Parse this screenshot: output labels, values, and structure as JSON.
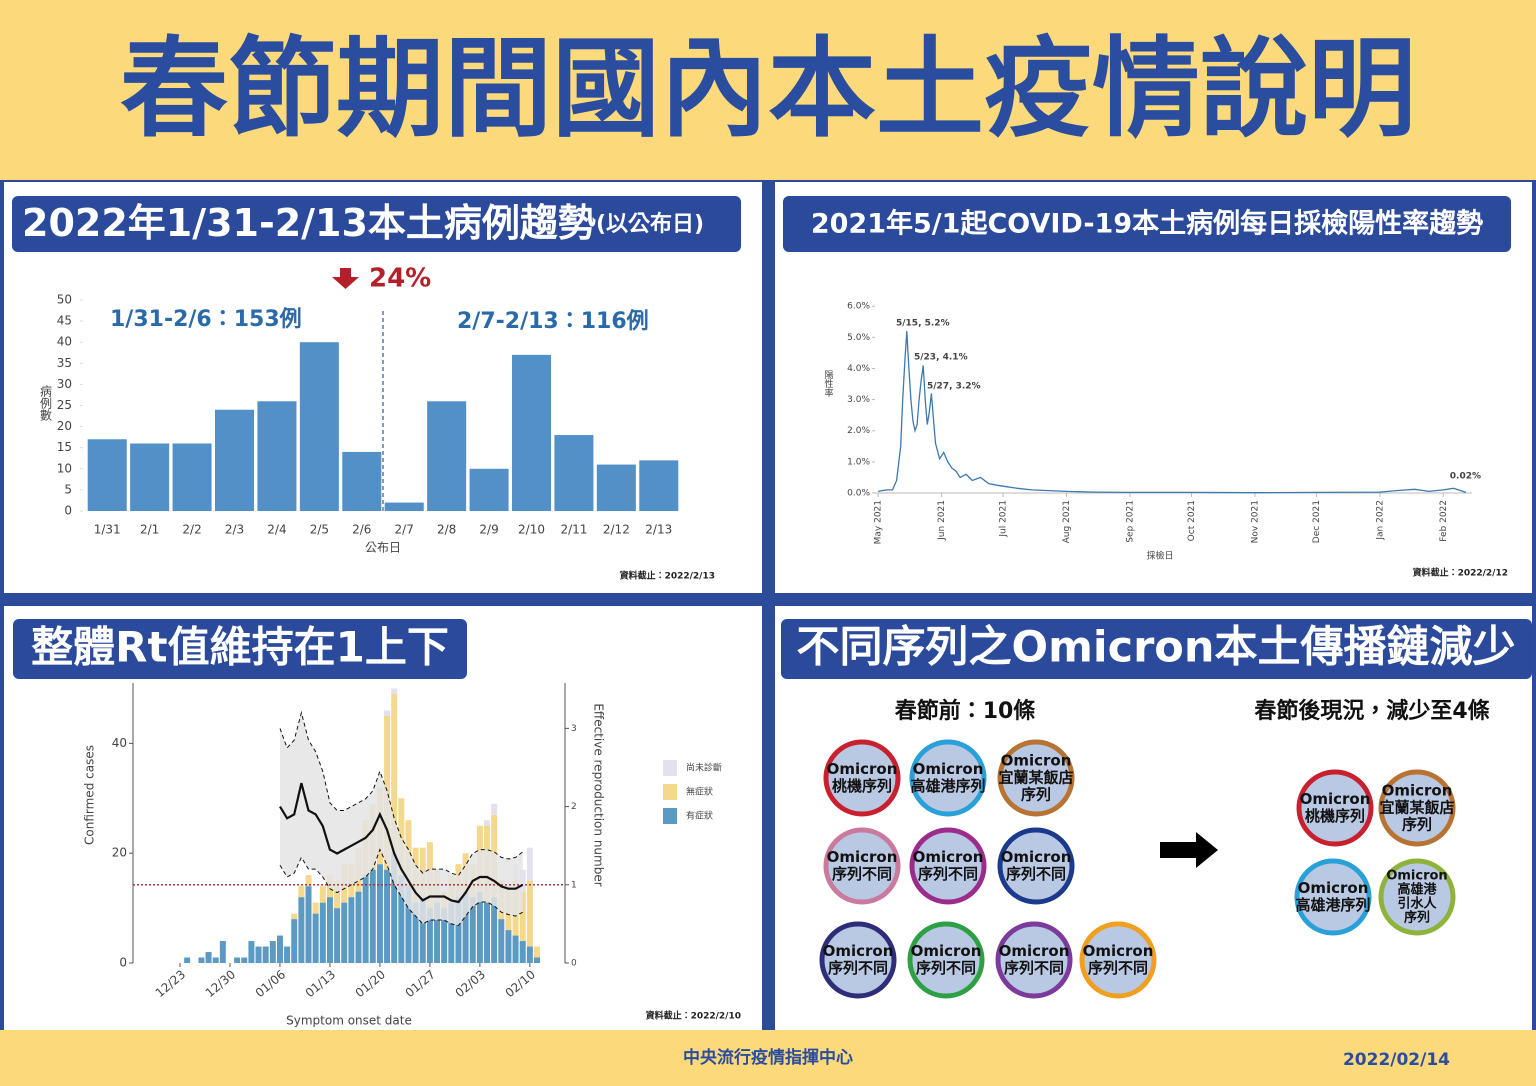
{
  "header": {
    "title": "春節期間國內本土疫情說明"
  },
  "footer": {
    "agency": "中央流行疫情指揮中心",
    "date": "2022/02/14"
  },
  "chart_data": [
    {
      "type": "bar",
      "title": "2022年1/31-2/13本土病例趨勢",
      "subtitle": "(以公布日)",
      "categories": [
        "1/31",
        "2/1",
        "2/2",
        "2/3",
        "2/4",
        "2/5",
        "2/6",
        "2/7",
        "2/8",
        "2/9",
        "2/10",
        "2/11",
        "2/12",
        "2/13"
      ],
      "values": [
        17,
        16,
        16,
        24,
        26,
        40,
        14,
        2,
        26,
        10,
        37,
        18,
        11,
        12
      ],
      "color": "#5490c8",
      "ylim": [
        0,
        50
      ],
      "yticks": [
        0,
        5,
        10,
        15,
        20,
        25,
        30,
        35,
        40,
        45,
        50
      ],
      "x_label": "公布日",
      "y_label": "病例數",
      "annotations": [
        "24%",
        "1/31-2/6：153例",
        "2/7-2/13：116例"
      ],
      "note": "資料截止：2022/2/13"
    },
    {
      "type": "line",
      "title": "2021年5/1起COVID-19本土病例每日採檢陽性率趨勢",
      "x": [
        "2021-05-01",
        "2021-05-05",
        "2021-05-08",
        "2021-05-10",
        "2021-05-12",
        "2021-05-13",
        "2021-05-14",
        "2021-05-15",
        "2021-05-16",
        "2021-05-17",
        "2021-05-18",
        "2021-05-19",
        "2021-05-20",
        "2021-05-21",
        "2021-05-22",
        "2021-05-23",
        "2021-05-24",
        "2021-05-25",
        "2021-05-26",
        "2021-05-27",
        "2021-05-28",
        "2021-05-29",
        "2021-05-31",
        "2021-06-02",
        "2021-06-04",
        "2021-06-06",
        "2021-06-08",
        "2021-06-10",
        "2021-06-13",
        "2021-06-16",
        "2021-06-20",
        "2021-06-24",
        "2021-06-28",
        "2021-07-03",
        "2021-07-08",
        "2021-07-15",
        "2021-07-22",
        "2021-08-01",
        "2021-08-15",
        "2021-09-01",
        "2021-10-01",
        "2021-11-01",
        "2021-12-01",
        "2022-01-01",
        "2022-01-10",
        "2022-01-18",
        "2022-01-25",
        "2022-02-01",
        "2022-02-06",
        "2022-02-12"
      ],
      "values": [
        0.05,
        0.1,
        0.1,
        0.4,
        1.5,
        3.0,
        4.2,
        5.2,
        4.0,
        3.0,
        2.3,
        2.0,
        2.2,
        3.0,
        3.6,
        4.1,
        3.0,
        2.2,
        2.6,
        3.2,
        2.4,
        1.6,
        1.1,
        1.3,
        1.0,
        0.8,
        0.7,
        0.5,
        0.6,
        0.4,
        0.5,
        0.3,
        0.25,
        0.2,
        0.15,
        0.1,
        0.08,
        0.05,
        0.03,
        0.02,
        0.02,
        0.01,
        0.02,
        0.03,
        0.08,
        0.12,
        0.05,
        0.1,
        0.15,
        0.02
      ],
      "color": "#3d78b0",
      "xlim": [
        "2021-04-28",
        "2022-02-15"
      ],
      "xticks": [
        {
          "value": "2021-05-01",
          "label": "May 2021"
        },
        {
          "value": "2021-06-01",
          "label": "Jun 2021"
        },
        {
          "value": "2021-07-01",
          "label": "Jul 2021"
        },
        {
          "value": "2021-08-01",
          "label": "Aug 2021"
        },
        {
          "value": "2021-09-01",
          "label": "Sep 2021"
        },
        {
          "value": "2021-10-01",
          "label": "Oct 2021"
        },
        {
          "value": "2021-11-01",
          "label": "Nov 2021"
        },
        {
          "value": "2021-12-01",
          "label": "Dec 2021"
        },
        {
          "value": "2022-01-01",
          "label": "Jan 2022"
        },
        {
          "value": "2022-02-01",
          "label": "Feb 2022"
        }
      ],
      "ylim": [
        0,
        6.2
      ],
      "yticks": [
        {
          "value": 0,
          "label": "0.0%"
        },
        {
          "value": 1,
          "label": "1.0%"
        },
        {
          "value": 2,
          "label": "2.0%"
        },
        {
          "value": 3,
          "label": "3.0%"
        },
        {
          "value": 4,
          "label": "4.0%"
        },
        {
          "value": 5,
          "label": "5.0%"
        },
        {
          "value": 6,
          "label": "6.0%"
        }
      ],
      "x_label": "採檢日",
      "y_label": "陽性率",
      "annotations": [
        "5/15, 5.2%",
        "5/23, 4.1%",
        "5/27, 3.2%",
        "0.02%"
      ],
      "note": "資料截止：2022/2/12"
    },
    {
      "type": "combo",
      "title": "整體Rt值維持在1上下",
      "categories": [
        "12/23",
        null,
        null,
        null,
        null,
        null,
        null,
        "12/30",
        null,
        null,
        null,
        null,
        null,
        null,
        "01/06",
        null,
        null,
        null,
        null,
        null,
        null,
        "01/13",
        null,
        null,
        null,
        null,
        null,
        null,
        "01/20",
        null,
        null,
        null,
        null,
        null,
        null,
        "01/27",
        null,
        null,
        null,
        null,
        null,
        null,
        "02/03",
        null,
        null,
        null,
        null,
        null,
        null,
        "02/10",
        null
      ],
      "series": [
        {
          "name": "有症狀",
          "color": "#5b9bc3",
          "values": [
            0,
            1,
            0,
            1,
            2,
            1,
            4,
            0,
            1,
            1,
            4,
            3,
            3,
            4,
            5,
            3,
            8,
            12,
            14,
            9,
            11,
            12,
            10,
            11,
            12,
            13,
            16,
            17,
            18,
            17,
            20,
            16,
            14,
            11,
            12,
            10,
            11,
            10,
            11,
            12,
            13,
            12,
            13,
            11,
            12,
            8,
            6,
            5,
            4,
            3,
            1
          ]
        },
        {
          "name": "無症狀",
          "color": "#f3d88d",
          "values": [
            0,
            0,
            0,
            0,
            0,
            0,
            0,
            0,
            0,
            0,
            0,
            0,
            0,
            0,
            0,
            0,
            1,
            2,
            2,
            2,
            3,
            4,
            5,
            7,
            6,
            8,
            10,
            12,
            14,
            28,
            29,
            14,
            12,
            10,
            9,
            12,
            6,
            3,
            5,
            6,
            7,
            6,
            12,
            14,
            15,
            7,
            8,
            10,
            9,
            12,
            2
          ]
        },
        {
          "name": "尚未診斷",
          "color": "#e3e1ef",
          "values": [
            0,
            0,
            0,
            0,
            0,
            0,
            0,
            0,
            0,
            0,
            0,
            0,
            0,
            0,
            0,
            0,
            0,
            0,
            0,
            0,
            0,
            0,
            0,
            0,
            0,
            0,
            0,
            0,
            0,
            1,
            1,
            0,
            0,
            0,
            0,
            0,
            0,
            0,
            0,
            0,
            0,
            0,
            0,
            1,
            2,
            0,
            0,
            3,
            4,
            6,
            0
          ]
        }
      ],
      "rt": {
        "color": "#111111",
        "values": [
          null,
          null,
          null,
          null,
          null,
          null,
          null,
          null,
          null,
          null,
          null,
          null,
          null,
          null,
          2.0,
          1.85,
          1.9,
          2.3,
          1.95,
          1.9,
          1.75,
          1.45,
          1.4,
          1.45,
          1.5,
          1.55,
          1.6,
          1.7,
          1.9,
          1.7,
          1.4,
          1.2,
          1.05,
          0.9,
          0.8,
          0.85,
          0.85,
          0.85,
          0.8,
          0.78,
          0.9,
          1.05,
          1.1,
          1.1,
          1.05,
          0.98,
          0.95,
          0.95,
          1.0,
          null,
          null
        ],
        "upper": [
          null,
          null,
          null,
          null,
          null,
          null,
          null,
          null,
          null,
          null,
          null,
          null,
          null,
          null,
          3.0,
          2.75,
          2.85,
          3.2,
          2.85,
          2.7,
          2.45,
          2.05,
          1.95,
          1.95,
          2.0,
          2.05,
          2.1,
          2.2,
          2.45,
          2.2,
          1.85,
          1.6,
          1.45,
          1.25,
          1.15,
          1.2,
          1.2,
          1.2,
          1.15,
          1.12,
          1.25,
          1.4,
          1.45,
          1.45,
          1.42,
          1.35,
          1.33,
          1.35,
          1.42,
          null,
          null
        ],
        "lower": [
          null,
          null,
          null,
          null,
          null,
          null,
          null,
          null,
          null,
          null,
          null,
          null,
          null,
          null,
          1.25,
          1.1,
          1.15,
          1.35,
          1.2,
          1.2,
          1.1,
          0.95,
          0.9,
          0.95,
          1.0,
          1.05,
          1.1,
          1.2,
          1.45,
          1.25,
          1.0,
          0.85,
          0.7,
          0.6,
          0.5,
          0.55,
          0.55,
          0.55,
          0.5,
          0.48,
          0.6,
          0.72,
          0.78,
          0.78,
          0.73,
          0.65,
          0.62,
          0.6,
          0.65,
          null,
          null
        ]
      },
      "threshold": 1,
      "ylim": [
        0,
        51
      ],
      "yticks": [
        0,
        20,
        40
      ],
      "y2lim": [
        0,
        3.58
      ],
      "y2ticks": [
        0,
        1,
        2,
        3
      ],
      "legend": "right",
      "x_label": "Symptom onset date",
      "y_label": "Confirmed cases",
      "y2_label": "Effective reproduction number",
      "note": "資料截止：2022/2/10"
    }
  ],
  "omicron": {
    "title": "不同序列之Omicron本土傳播鏈減少",
    "before_title": "春節前：10條",
    "after_title": "春節後現況，減少至4條",
    "fill": "#b9c8e3",
    "before": [
      {
        "lines": [
          "Omicron",
          "桃機序列"
        ],
        "color": "#c8202f"
      },
      {
        "lines": [
          "Omicron",
          "高雄港序列"
        ],
        "color": "#2aa0d8"
      },
      {
        "lines": [
          "Omicron",
          "宜蘭某飯店",
          "序列"
        ],
        "color": "#b87333"
      },
      {
        "lines": [
          "Omicron",
          "序列不同"
        ],
        "color": "#c97a9d"
      },
      {
        "lines": [
          "Omicron",
          "序列不同"
        ],
        "color": "#9b2c8c"
      },
      {
        "lines": [
          "Omicron",
          "序列不同"
        ],
        "color": "#1b3a8c"
      },
      {
        "lines": [
          "Omicron",
          "序列不同"
        ],
        "color": "#2e2d7a"
      },
      {
        "lines": [
          "Omicron",
          "序列不同"
        ],
        "color": "#2ea044"
      },
      {
        "lines": [
          "Omicron",
          "序列不同"
        ],
        "color": "#7b3a9c"
      },
      {
        "lines": [
          "Omicron",
          "序列不同"
        ],
        "color": "#f0a020"
      }
    ],
    "after": [
      {
        "lines": [
          "Omicron",
          "桃機序列"
        ],
        "color": "#c8202f"
      },
      {
        "lines": [
          "Omicron",
          "宜蘭某飯店",
          "序列"
        ],
        "color": "#b87333"
      },
      {
        "lines": [
          "Omicron",
          "高雄港序列"
        ],
        "color": "#2aa0d8"
      },
      {
        "lines": [
          "Omicron",
          "高雄港",
          "引水人",
          "序列"
        ],
        "color": "#8db33a"
      }
    ]
  }
}
